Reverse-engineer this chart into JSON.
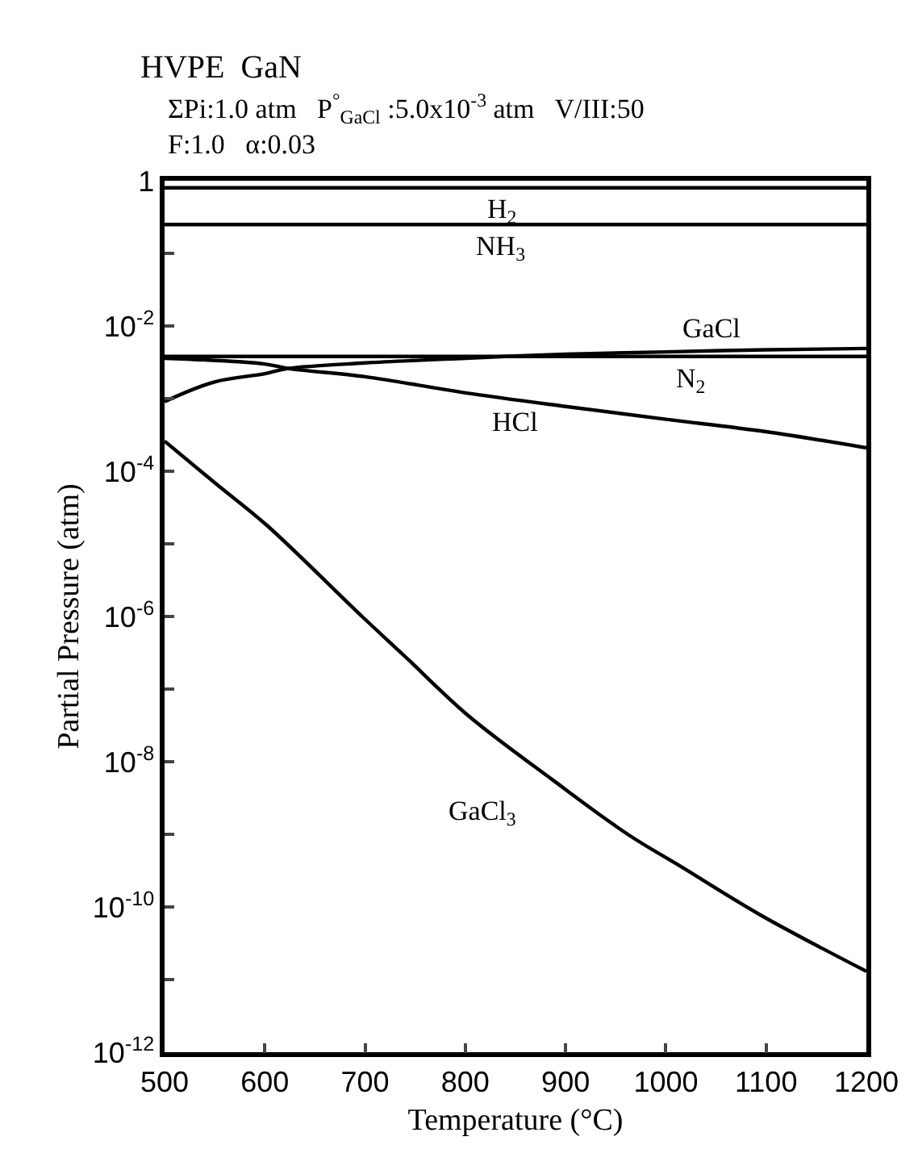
{
  "chart_data": {
    "type": "line",
    "title": "HVPE  GaN",
    "subtitle": "ΣPi:1.0 atm   P$^{°}$$_{GaCl}$ :5.0x10$^{-3}$ atm   V/III:50\nF:1.0   α:0.03",
    "xlabel": "Temperature (°C)",
    "ylabel": "Partial Pressure (atm)",
    "log": "y",
    "legend": false,
    "marker": "none",
    "xlim": [
      500,
      1200
    ],
    "xticks": [
      500,
      600,
      700,
      800,
      900,
      1000,
      1100,
      1200
    ],
    "ylim": [
      1e-12,
      1
    ],
    "yticks": [
      {
        "value": 1,
        "label": "1"
      },
      {
        "value": 0.1,
        "label": null
      },
      {
        "value": 0.01,
        "label": "10$^{-2}$"
      },
      {
        "value": 0.001,
        "label": null
      },
      {
        "value": 0.0001,
        "label": "10$^{-4}$"
      },
      {
        "value": 1e-05,
        "label": null
      },
      {
        "value": 1e-06,
        "label": "10$^{-6}$"
      },
      {
        "value": 1e-07,
        "label": null
      },
      {
        "value": 1e-08,
        "label": "10$^{-8}$"
      },
      {
        "value": 1e-09,
        "label": null
      },
      {
        "value": 1e-10,
        "label": "10$^{-10}$"
      },
      {
        "value": 1e-11,
        "label": null
      },
      {
        "value": 1e-12,
        "label": "10$^{-12}$"
      }
    ],
    "series": [
      {
        "name": "H$_{2}$",
        "color": "#000000",
        "x": [
          500,
          1200
        ],
        "values": [
          0.8,
          0.8
        ]
      },
      {
        "name": "NH$_{3}$",
        "color": "#000000",
        "x": [
          500,
          1200
        ],
        "values": [
          0.25,
          0.25
        ]
      },
      {
        "name": "GaCl",
        "color": "#000000",
        "x": [
          500,
          550,
          600,
          623,
          700,
          800,
          900,
          1000,
          1100,
          1200
        ],
        "values": [
          0.00091,
          0.0017,
          0.0022,
          0.0026,
          0.0031,
          0.0036,
          0.0041,
          0.0044,
          0.0047,
          0.0049
        ]
      },
      {
        "name": "N$_{2}$",
        "color": "#000000",
        "x": [
          500,
          1200
        ],
        "values": [
          0.0038,
          0.0038
        ]
      },
      {
        "name": "HCl",
        "color": "#000000",
        "x": [
          500,
          600,
          623,
          700,
          800,
          900,
          1000,
          1100,
          1200
        ],
        "values": [
          0.0036,
          0.003,
          0.0026,
          0.002,
          0.0012,
          0.00078,
          0.00052,
          0.00035,
          0.00021
        ]
      },
      {
        "name": "GaCl$_{3}$",
        "color": "#000000",
        "x": [
          500,
          552,
          602,
          697,
          740,
          803,
          888,
          962,
          1015,
          1094,
          1200
        ],
        "values": [
          0.00026,
          6.6e-05,
          1.8e-05,
          1e-06,
          2.8e-07,
          4.3e-08,
          5.5e-09,
          1e-09,
          3.6e-10,
          7.8e-11,
          1.3e-11
        ]
      }
    ]
  }
}
